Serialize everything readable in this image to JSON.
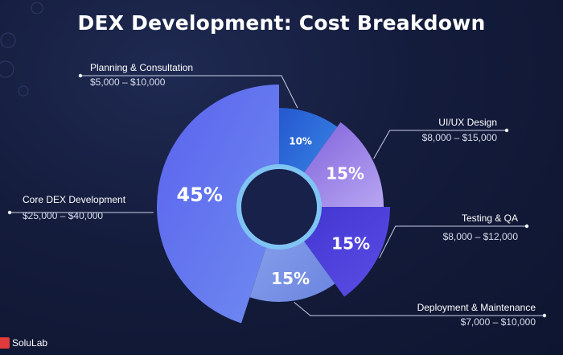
{
  "chart_data": {
    "type": "pie",
    "title": "DEX Development: Cost Breakdown",
    "slices": [
      {
        "name": "Planning & Consultation",
        "range": "$5,000 – $10,000",
        "value": 10,
        "label": "10%",
        "color": "#2f6ee0"
      },
      {
        "name": "UI/UX Design",
        "range": "$8,000 – $15,000",
        "value": 15,
        "label": "15%",
        "color": "#8b6ee8"
      },
      {
        "name": "Testing & QA",
        "range": "$8,000 – $12,000",
        "value": 15,
        "label": "15%",
        "color": "#4a3fd8"
      },
      {
        "name": "Deployment & Maintenance",
        "range": "$7,000 – $10,000",
        "value": 15,
        "label": "15%",
        "color": "#7f96e6"
      },
      {
        "name": "Core DEX Development",
        "range": "$25,000 – $40,000",
        "value": 45,
        "label": "45%",
        "color": "#6075ee"
      }
    ]
  },
  "brand": {
    "name": "SoluLab"
  }
}
